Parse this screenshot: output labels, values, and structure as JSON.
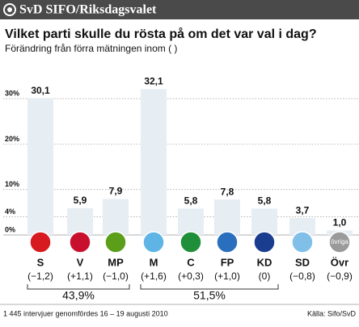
{
  "chart_data": {
    "type": "bar",
    "header": "SvD SIFO/Riksdagsvalet",
    "title": "Vilket parti skulle du rösta på om det var val i dag?",
    "subtitle": "Förändring från förra mätningen inom ( )",
    "categories": [
      "S",
      "V",
      "MP",
      "M",
      "C",
      "FP",
      "KD",
      "SD",
      "Övr"
    ],
    "values": [
      30.1,
      5.9,
      7.9,
      32.1,
      5.8,
      7.8,
      5.8,
      3.7,
      1.0
    ],
    "value_labels": [
      "30,1",
      "5,9",
      "7,9",
      "32,1",
      "5,8",
      "7,8",
      "5,8",
      "3,7",
      "1,0"
    ],
    "changes": [
      -1.2,
      1.1,
      -1.0,
      1.6,
      0.3,
      1.0,
      0,
      -0.8,
      -0.9
    ],
    "change_labels": [
      "(−1,2)",
      "(+1,1)",
      "(−1,0)",
      "(+1,6)",
      "(+0,3)",
      "(+1,0)",
      "(0)",
      "(−0,8)",
      "(−0,9)"
    ],
    "icon_colors": [
      "#d71920",
      "#c8102e",
      "#5a9e1a",
      "#5fb4e6",
      "#1f8f3a",
      "#2a6fbe",
      "#1a3d8f",
      "#7fbfe8",
      "#9a9a9a"
    ],
    "other_icon_label": "övriga",
    "color": "#e6edf3",
    "blocs": [
      {
        "value": 43.9,
        "label": "43,9%"
      },
      {
        "value": 51.5,
        "label": "51,5%"
      }
    ],
    "ylim": [
      0,
      35
    ],
    "yticks": [
      {
        "value": 0,
        "label": "0%"
      },
      {
        "value": 4,
        "label": "4%"
      },
      {
        "value": 10,
        "label": "10%"
      },
      {
        "value": 20,
        "label": "20%"
      },
      {
        "value": 30,
        "label": "30%"
      }
    ],
    "grid": true,
    "footnote": "1 445 intervjuer genomfördes 16 – 19 augusti 2010",
    "source": "Källa: Sifo/SvD"
  }
}
